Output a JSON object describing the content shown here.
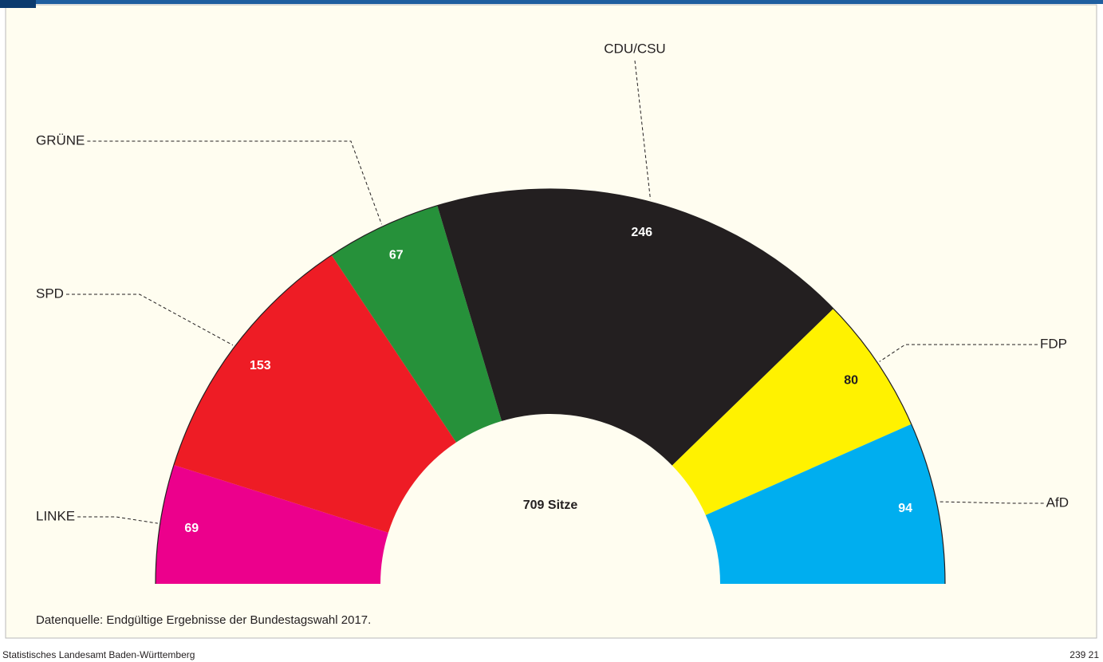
{
  "chart_data": {
    "type": "parliament",
    "categories": [
      "LINKE",
      "SPD",
      "GRÜNE",
      "CDU/CSU",
      "FDP",
      "AfD"
    ],
    "values": [
      69,
      153,
      67,
      246,
      80,
      94
    ],
    "colors": [
      "#ec008c",
      "#ee1c25",
      "#26913a",
      "#231f20",
      "#fff200",
      "#00aeef"
    ],
    "label_colors": [
      "#ffffff",
      "#ffffff",
      "#ffffff",
      "#ffffff",
      "#231f20",
      "#ffffff"
    ],
    "center_label": "709 Sitze",
    "source": "Datenquelle: Endgültige Ergebnisse der Bundestagswahl 2017.",
    "publisher": "Statistisches Landesamt Baden-Württemberg",
    "code": "239 21"
  }
}
